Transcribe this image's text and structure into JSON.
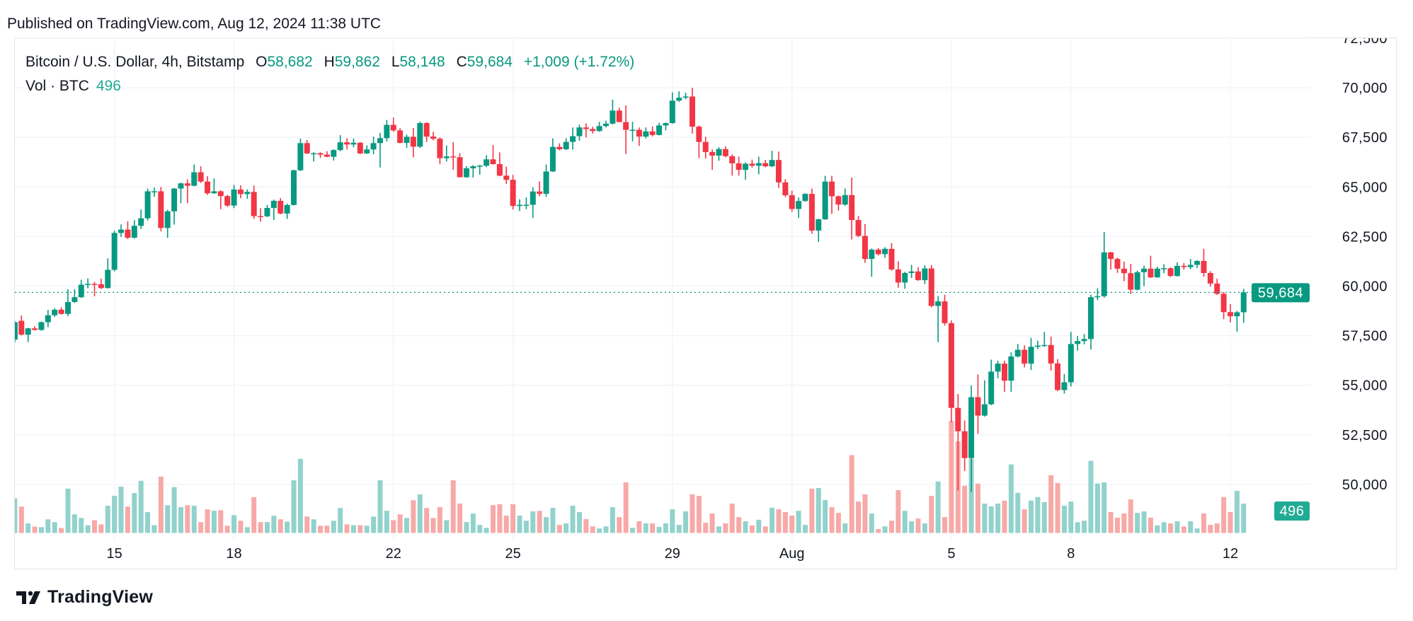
{
  "header": {
    "published": "Published on TradingView.com, Aug 12, 2024 11:38 UTC"
  },
  "legend": {
    "symbol": "Bitcoin / U.S. Dollar, 4h, Bitstamp",
    "o_label": "O",
    "o_value": "58,682",
    "h_label": "H",
    "h_value": "59,862",
    "l_label": "L",
    "l_value": "58,148",
    "c_label": "C",
    "c_value": "59,684",
    "change": "+1,009 (+1.72%)",
    "vol_label": "Vol · BTC",
    "vol_value": "496"
  },
  "price_tag": "59,684",
  "volume_tag": "496",
  "brand": {
    "name": "TradingView"
  },
  "colors": {
    "up": "#089981",
    "down": "#f23645",
    "up_vol": "#92d2cc",
    "down_vol": "#f7a9a7",
    "vol_tag": "#22ab94",
    "grid": "#f0f3fa"
  },
  "chart_data": {
    "type": "candlestick",
    "title": "Bitcoin / U.S. Dollar, 4h, Bitstamp",
    "interval": "4h",
    "first_candle": "2024-07-12 12:00 UTC",
    "last_close": 59684,
    "ylim": [
      47500,
      72500
    ],
    "yticks": [
      {
        "value": 72500,
        "label": "72,500"
      },
      {
        "value": 70000,
        "label": "70,000"
      },
      {
        "value": 67500,
        "label": "67,500"
      },
      {
        "value": 65000,
        "label": "65,000"
      },
      {
        "value": 62500,
        "label": "62,500"
      },
      {
        "value": 60000,
        "label": "60,000"
      },
      {
        "value": 57500,
        "label": "57,500"
      },
      {
        "value": 55000,
        "label": "55,000"
      },
      {
        "value": 52500,
        "label": "52,500"
      },
      {
        "value": 50000,
        "label": "50,000"
      }
    ],
    "xticks": [
      {
        "label": "15",
        "candle_index": 15
      },
      {
        "label": "18",
        "candle_index": 33
      },
      {
        "label": "22",
        "candle_index": 57
      },
      {
        "label": "25",
        "candle_index": 75
      },
      {
        "label": "29",
        "candle_index": 99
      },
      {
        "label": "Aug",
        "candle_index": 117
      },
      {
        "label": "5",
        "candle_index": 141
      },
      {
        "label": "8",
        "candle_index": 159
      },
      {
        "label": "12",
        "candle_index": 183
      }
    ],
    "fields": [
      "open",
      "high",
      "low",
      "close",
      "volume_btc"
    ],
    "candles": [
      [
        57300,
        58250,
        57150,
        58180,
        586
      ],
      [
        58250,
        58520,
        57510,
        57550,
        446
      ],
      [
        57550,
        57900,
        57180,
        57870,
        160
      ],
      [
        57870,
        57980,
        57760,
        57790,
        108
      ],
      [
        57790,
        58220,
        57750,
        58180,
        98
      ],
      [
        58180,
        58800,
        57930,
        58530,
        230
      ],
      [
        58530,
        58880,
        58450,
        58810,
        183
      ],
      [
        58810,
        58930,
        58560,
        58600,
        84
      ],
      [
        58600,
        59840,
        58480,
        59200,
        750
      ],
      [
        59200,
        59840,
        59150,
        59440,
        314
      ],
      [
        59440,
        60320,
        59400,
        60070,
        253
      ],
      [
        60070,
        60390,
        59890,
        60110,
        131
      ],
      [
        60110,
        60210,
        59490,
        60090,
        216
      ],
      [
        60090,
        60370,
        59850,
        59900,
        145
      ],
      [
        59900,
        61400,
        59880,
        60820,
        460
      ],
      [
        60820,
        62790,
        60740,
        62680,
        628
      ],
      [
        62680,
        63110,
        62480,
        62850,
        783
      ],
      [
        62850,
        63270,
        62370,
        62440,
        446
      ],
      [
        62440,
        63320,
        62400,
        63040,
        675
      ],
      [
        63040,
        63860,
        62880,
        63420,
        882
      ],
      [
        63420,
        64920,
        63310,
        64780,
        352
      ],
      [
        64780,
        64970,
        64500,
        64780,
        131
      ],
      [
        64780,
        65000,
        62760,
        62930,
        952
      ],
      [
        62930,
        63850,
        62430,
        63770,
        469
      ],
      [
        63770,
        64950,
        63100,
        64920,
        774
      ],
      [
        64920,
        65220,
        64180,
        65180,
        436
      ],
      [
        65180,
        65380,
        64180,
        65060,
        469
      ],
      [
        65060,
        66130,
        65030,
        65740,
        460
      ],
      [
        65740,
        66040,
        65200,
        65270,
        183
      ],
      [
        65270,
        65540,
        64600,
        64680,
        399
      ],
      [
        64680,
        65430,
        64650,
        64780,
        375
      ],
      [
        64780,
        64830,
        63880,
        64540,
        385
      ],
      [
        64540,
        64600,
        64000,
        64060,
        122
      ],
      [
        64060,
        65100,
        63930,
        64870,
        300
      ],
      [
        64870,
        65080,
        64430,
        64640,
        206
      ],
      [
        64640,
        64870,
        64400,
        64750,
        98
      ],
      [
        64750,
        65070,
        63390,
        63530,
        605
      ],
      [
        63530,
        63930,
        63250,
        63520,
        183
      ],
      [
        63520,
        64090,
        63480,
        63940,
        183
      ],
      [
        63940,
        64360,
        63340,
        64300,
        291
      ],
      [
        64300,
        64440,
        63620,
        63660,
        230
      ],
      [
        63660,
        64160,
        63390,
        64090,
        192
      ],
      [
        64090,
        65870,
        64060,
        65840,
        891
      ],
      [
        65840,
        67440,
        65800,
        67210,
        1252
      ],
      [
        67210,
        67370,
        66660,
        66690,
        277
      ],
      [
        66690,
        66750,
        66280,
        66700,
        230
      ],
      [
        66700,
        66750,
        66460,
        66630,
        122
      ],
      [
        66630,
        66800,
        66500,
        66520,
        122
      ],
      [
        66520,
        66900,
        66330,
        66860,
        206
      ],
      [
        66860,
        67610,
        66800,
        67250,
        422
      ],
      [
        67250,
        67450,
        66890,
        67140,
        145
      ],
      [
        67140,
        67440,
        67000,
        67230,
        131
      ],
      [
        67230,
        67260,
        66650,
        66690,
        131
      ],
      [
        66690,
        67100,
        66660,
        66890,
        122
      ],
      [
        66890,
        67540,
        66650,
        67210,
        277
      ],
      [
        67210,
        67720,
        65980,
        67460,
        891
      ],
      [
        67460,
        68380,
        67300,
        68130,
        375
      ],
      [
        68130,
        68500,
        67780,
        67850,
        216
      ],
      [
        67850,
        67960,
        67200,
        67220,
        314
      ],
      [
        67220,
        67640,
        66970,
        67530,
        253
      ],
      [
        67530,
        67970,
        66500,
        67030,
        553
      ],
      [
        67030,
        68290,
        66960,
        68220,
        652
      ],
      [
        68220,
        68270,
        67270,
        67540,
        422
      ],
      [
        67540,
        67780,
        67350,
        67430,
        253
      ],
      [
        67430,
        67500,
        66150,
        66450,
        436
      ],
      [
        66450,
        67090,
        66280,
        66540,
        216
      ],
      [
        66540,
        67250,
        65870,
        66500,
        891
      ],
      [
        66500,
        66700,
        65480,
        65490,
        497
      ],
      [
        65490,
        66050,
        65460,
        65940,
        183
      ],
      [
        65940,
        66100,
        65470,
        66040,
        328
      ],
      [
        66040,
        66120,
        65620,
        66070,
        137
      ],
      [
        66070,
        66600,
        66000,
        66390,
        86
      ],
      [
        66390,
        67110,
        66130,
        66150,
        471
      ],
      [
        66150,
        66740,
        65540,
        65570,
        486
      ],
      [
        65570,
        66020,
        65150,
        65360,
        293
      ],
      [
        65360,
        65610,
        63860,
        64040,
        486
      ],
      [
        64040,
        64380,
        63790,
        64100,
        293
      ],
      [
        64100,
        64470,
        63880,
        64100,
        207
      ],
      [
        64100,
        64980,
        63430,
        64770,
        364
      ],
      [
        64770,
        65280,
        64530,
        64650,
        374
      ],
      [
        64650,
        66130,
        64500,
        65780,
        268
      ],
      [
        65780,
        67450,
        65760,
        67020,
        425
      ],
      [
        67020,
        67200,
        66850,
        66900,
        137
      ],
      [
        66900,
        67450,
        66860,
        67270,
        162
      ],
      [
        67270,
        68000,
        66880,
        67560,
        460
      ],
      [
        67560,
        68140,
        67330,
        68000,
        354
      ],
      [
        68000,
        68210,
        67490,
        67920,
        233
      ],
      [
        67920,
        68030,
        67690,
        67820,
        111
      ],
      [
        67820,
        68280,
        67780,
        68070,
        76
      ],
      [
        68070,
        68340,
        68000,
        68190,
        111
      ],
      [
        68190,
        69400,
        68150,
        68850,
        435
      ],
      [
        68850,
        68990,
        68290,
        68270,
        268
      ],
      [
        68270,
        69110,
        66660,
        67880,
        855
      ],
      [
        67880,
        68290,
        67300,
        67880,
        86
      ],
      [
        67880,
        68000,
        67070,
        67540,
        197
      ],
      [
        67540,
        68000,
        67450,
        67800,
        162
      ],
      [
        67800,
        68050,
        67550,
        67620,
        162
      ],
      [
        67620,
        68230,
        67600,
        68100,
        101
      ],
      [
        68100,
        68250,
        67850,
        68220,
        162
      ],
      [
        68220,
        69770,
        68190,
        69350,
        400
      ],
      [
        69350,
        69820,
        69290,
        69500,
        137
      ],
      [
        69500,
        69750,
        69420,
        69560,
        364
      ],
      [
        69560,
        70000,
        67690,
        68040,
        653
      ],
      [
        68040,
        68100,
        66460,
        67270,
        627
      ],
      [
        67270,
        67530,
        66430,
        66760,
        172
      ],
      [
        66760,
        66890,
        65860,
        66580,
        329
      ],
      [
        66580,
        67000,
        66320,
        66910,
        111
      ],
      [
        66910,
        67050,
        66500,
        66550,
        162
      ],
      [
        66550,
        66640,
        65570,
        66190,
        496
      ],
      [
        66190,
        66530,
        65570,
        65860,
        268
      ],
      [
        65860,
        66240,
        65360,
        66170,
        197
      ],
      [
        66170,
        66380,
        65980,
        66070,
        127
      ],
      [
        66070,
        66530,
        65640,
        66200,
        223
      ],
      [
        66200,
        66360,
        65990,
        66040,
        111
      ],
      [
        66040,
        66820,
        66000,
        66360,
        425
      ],
      [
        66360,
        66780,
        64950,
        65230,
        400
      ],
      [
        65230,
        65390,
        64490,
        64580,
        354
      ],
      [
        64580,
        64810,
        63750,
        63890,
        293
      ],
      [
        63890,
        64470,
        63430,
        64290,
        374
      ],
      [
        64290,
        64680,
        64250,
        64650,
        137
      ],
      [
        64650,
        64920,
        62640,
        62800,
        749
      ],
      [
        62800,
        63400,
        62230,
        63370,
        759
      ],
      [
        63370,
        65560,
        63340,
        65270,
        557
      ],
      [
        65270,
        65560,
        63640,
        64530,
        435
      ],
      [
        64530,
        64570,
        63810,
        64110,
        339
      ],
      [
        64110,
        64920,
        64050,
        64590,
        162
      ],
      [
        64590,
        65470,
        62350,
        63330,
        1316
      ],
      [
        63330,
        63540,
        62470,
        62530,
        531
      ],
      [
        62530,
        63130,
        61170,
        61370,
        653
      ],
      [
        61370,
        61900,
        60470,
        61840,
        329
      ],
      [
        61840,
        61920,
        61540,
        61610,
        66
      ],
      [
        61610,
        61960,
        61420,
        61880,
        111
      ],
      [
        61880,
        62170,
        60780,
        60840,
        207
      ],
      [
        60840,
        61250,
        59920,
        60180,
        724
      ],
      [
        60180,
        60720,
        59860,
        60660,
        374
      ],
      [
        60660,
        61070,
        60410,
        60740,
        197
      ],
      [
        60740,
        60960,
        60270,
        60300,
        243
      ],
      [
        60300,
        61050,
        60100,
        60890,
        162
      ],
      [
        60890,
        61060,
        58930,
        59000,
        627
      ],
      [
        59000,
        59500,
        57170,
        59230,
        870
      ],
      [
        59230,
        59560,
        58010,
        58130,
        268
      ],
      [
        58130,
        58270,
        53130,
        53860,
        1892
      ],
      [
        53860,
        54560,
        49700,
        52680,
        1550
      ],
      [
        52680,
        53220,
        50680,
        51330,
        799
      ],
      [
        51330,
        54990,
        49620,
        54400,
        1255
      ],
      [
        54400,
        55550,
        52550,
        53470,
        835
      ],
      [
        53470,
        55250,
        53420,
        54040,
        496
      ],
      [
        54040,
        56290,
        54000,
        55690,
        450
      ],
      [
        55690,
        56240,
        55350,
        56090,
        496
      ],
      [
        56090,
        56240,
        54670,
        55230,
        546
      ],
      [
        55230,
        56660,
        54670,
        56450,
        1159
      ],
      [
        56450,
        57080,
        56400,
        56790,
        678
      ],
      [
        56790,
        57010,
        55900,
        56090,
        400
      ],
      [
        56090,
        57390,
        55770,
        56940,
        546
      ],
      [
        56940,
        57240,
        56820,
        57000,
        607
      ],
      [
        57000,
        57690,
        56940,
        57030,
        521
      ],
      [
        57030,
        57450,
        55740,
        56100,
        977
      ],
      [
        56100,
        56320,
        54700,
        54760,
        845
      ],
      [
        54760,
        55570,
        54580,
        55150,
        460
      ],
      [
        55150,
        57690,
        54940,
        57080,
        531
      ],
      [
        57080,
        57480,
        56750,
        57230,
        182
      ],
      [
        57230,
        57580,
        57060,
        57330,
        207
      ],
      [
        57330,
        59560,
        56800,
        59440,
        1219
      ],
      [
        59440,
        59890,
        59290,
        59490,
        835
      ],
      [
        59490,
        62730,
        59420,
        61700,
        855
      ],
      [
        61700,
        61730,
        60830,
        61370,
        354
      ],
      [
        61370,
        61440,
        60670,
        60880,
        258
      ],
      [
        60880,
        61240,
        60250,
        60650,
        329
      ],
      [
        60650,
        61120,
        59600,
        59820,
        567
      ],
      [
        59820,
        60780,
        59780,
        60700,
        339
      ],
      [
        60700,
        61030,
        60000,
        60880,
        364
      ],
      [
        60880,
        61530,
        60410,
        60440,
        258
      ],
      [
        60440,
        60980,
        60420,
        60880,
        127
      ],
      [
        60880,
        61110,
        60650,
        60900,
        182
      ],
      [
        60900,
        60950,
        60460,
        60510,
        162
      ],
      [
        60510,
        61200,
        60480,
        61020,
        197
      ],
      [
        61020,
        61160,
        60830,
        60960,
        111
      ],
      [
        60960,
        61370,
        60850,
        61070,
        197
      ],
      [
        61070,
        61300,
        60910,
        61270,
        76
      ],
      [
        61270,
        61880,
        60470,
        60660,
        329
      ],
      [
        60660,
        60750,
        59980,
        60130,
        137
      ],
      [
        60130,
        60370,
        59550,
        59610,
        162
      ],
      [
        59610,
        59700,
        58330,
        58690,
        607
      ],
      [
        58690,
        59090,
        58170,
        58480,
        354
      ],
      [
        58480,
        58750,
        57700,
        58680,
        713
      ],
      [
        58682,
        59862,
        58148,
        59684,
        496
      ]
    ]
  }
}
